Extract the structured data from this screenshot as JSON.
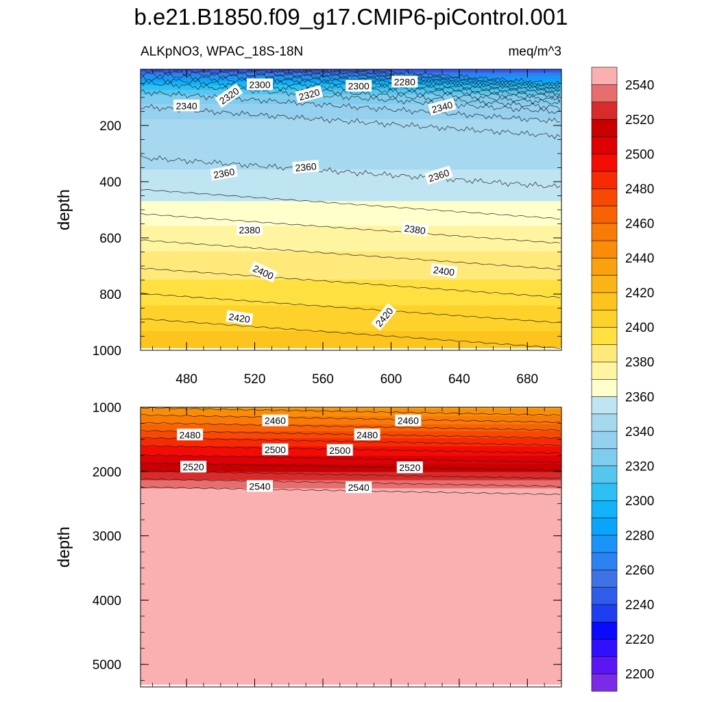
{
  "chart_data": {
    "type": "heatmap",
    "title": "b.e21.B1850.f09_g17.CMIP6-piControl.001",
    "subtitle_left": "ALKpNO3, WPAC_18S-18N",
    "subtitle_right": "meq/m^3",
    "ylabel": "depth",
    "x_range": [
      453,
      700
    ],
    "x_ticks": [
      480,
      520,
      560,
      600,
      640,
      680
    ],
    "panels": [
      {
        "name": "upper",
        "ylim": [
          0,
          1000
        ],
        "y_ticks": [
          200,
          400,
          600,
          800,
          1000
        ],
        "depth_profile": [
          [
            0,
            2230
          ],
          [
            30,
            2275
          ],
          [
            60,
            2305
          ],
          [
            100,
            2330
          ],
          [
            150,
            2345
          ],
          [
            200,
            2352
          ],
          [
            300,
            2356
          ],
          [
            400,
            2362
          ],
          [
            500,
            2372
          ],
          [
            600,
            2384
          ],
          [
            700,
            2394
          ],
          [
            800,
            2404
          ],
          [
            900,
            2416
          ],
          [
            1000,
            2426
          ]
        ],
        "contour_labels": [
          {
            "v": "2300",
            "x": 523,
            "d": 55,
            "r": 0
          },
          {
            "v": "2320",
            "x": 505,
            "d": 95,
            "r": -35
          },
          {
            "v": "2320",
            "x": 552,
            "d": 90,
            "r": -15
          },
          {
            "v": "2300",
            "x": 581,
            "d": 60,
            "r": 0
          },
          {
            "v": "2280",
            "x": 608,
            "d": 45,
            "r": 0
          },
          {
            "v": "2340",
            "x": 480,
            "d": 130,
            "r": 0
          },
          {
            "v": "2340",
            "x": 630,
            "d": 135,
            "r": -15
          },
          {
            "v": "2360",
            "x": 502,
            "d": 370,
            "r": -10
          },
          {
            "v": "2360",
            "x": 550,
            "d": 348,
            "r": -5
          },
          {
            "v": "2360",
            "x": 628,
            "d": 378,
            "r": -18
          },
          {
            "v": "2380",
            "x": 517,
            "d": 572,
            "r": 0
          },
          {
            "v": "2380",
            "x": 614,
            "d": 570,
            "r": 8
          },
          {
            "v": "2400",
            "x": 525,
            "d": 722,
            "r": 25
          },
          {
            "v": "2400",
            "x": 631,
            "d": 718,
            "r": 8
          },
          {
            "v": "2420",
            "x": 511,
            "d": 885,
            "r": 8
          },
          {
            "v": "2420",
            "x": 596,
            "d": 882,
            "r": -50
          }
        ]
      },
      {
        "name": "lower",
        "ylim": [
          1000,
          5350
        ],
        "y_ticks": [
          1000,
          2000,
          3000,
          4000,
          5000
        ],
        "depth_profile": [
          [
            1000,
            2444
          ],
          [
            1200,
            2462
          ],
          [
            1400,
            2478
          ],
          [
            1600,
            2496
          ],
          [
            1800,
            2510
          ],
          [
            2000,
            2526
          ],
          [
            2200,
            2542
          ],
          [
            2400,
            2558
          ],
          [
            5350,
            2562
          ]
        ],
        "contour_labels": [
          {
            "v": "2460",
            "x": 532,
            "d": 1210,
            "r": 0
          },
          {
            "v": "2460",
            "x": 610,
            "d": 1210,
            "r": 0
          },
          {
            "v": "2480",
            "x": 482,
            "d": 1430,
            "r": 0
          },
          {
            "v": "2480",
            "x": 586,
            "d": 1430,
            "r": 0
          },
          {
            "v": "2500",
            "x": 532,
            "d": 1660,
            "r": 0
          },
          {
            "v": "2500",
            "x": 570,
            "d": 1670,
            "r": 0
          },
          {
            "v": "2520",
            "x": 484,
            "d": 1930,
            "r": 0
          },
          {
            "v": "2520",
            "x": 611,
            "d": 1940,
            "r": 0
          },
          {
            "v": "2540",
            "x": 523,
            "d": 2230,
            "r": 0
          },
          {
            "v": "2540",
            "x": 581,
            "d": 2250,
            "r": 0
          }
        ]
      }
    ],
    "colorbar": {
      "levels": [
        2200,
        2210,
        2220,
        2230,
        2240,
        2250,
        2260,
        2270,
        2280,
        2290,
        2300,
        2310,
        2320,
        2330,
        2340,
        2350,
        2360,
        2370,
        2380,
        2390,
        2400,
        2410,
        2420,
        2430,
        2440,
        2450,
        2460,
        2470,
        2480,
        2490,
        2500,
        2510,
        2520,
        2530,
        2540,
        2550
      ],
      "labels": [
        "2200",
        "2220",
        "2240",
        "2260",
        "2280",
        "2300",
        "2320",
        "2340",
        "2360",
        "2380",
        "2400",
        "2420",
        "2440",
        "2460",
        "2480",
        "2500",
        "2520",
        "2540"
      ],
      "colors": [
        "#7b2ae8",
        "#5a17f3",
        "#3010ff",
        "#0a0aff",
        "#1e3ef0",
        "#2f5ce8",
        "#3f72e6",
        "#2c82f0",
        "#1a94f8",
        "#0aa4fb",
        "#11b4fa",
        "#2ec0f5",
        "#55c6f0",
        "#7ecdef",
        "#95d0ef",
        "#a6d8ef",
        "#bfe4f2",
        "#ffffcc",
        "#fff5a0",
        "#fee97a",
        "#fee040",
        "#fed22a",
        "#fdc41e",
        "#fbb416",
        "#faa20c",
        "#fb8c08",
        "#fa7a06",
        "#f86204",
        "#f84804",
        "#f82a04",
        "#f40c04",
        "#de0004",
        "#c80000",
        "#d82c2c",
        "#e86e6e",
        "#fab0b0"
      ]
    }
  }
}
